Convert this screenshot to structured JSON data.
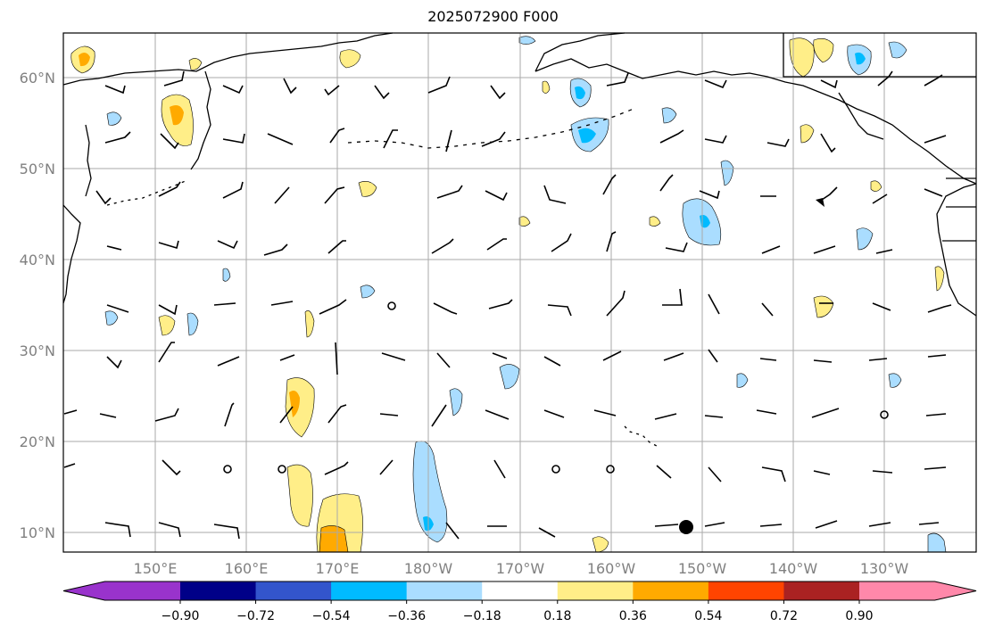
{
  "title": "2025072900 F000",
  "lat_labels": [
    "60°N",
    "50°N",
    "40°N",
    "30°N",
    "20°N",
    "10°N"
  ],
  "lon_labels": [
    "150°E",
    "160°E",
    "170°E",
    "180°W",
    "170°W",
    "160°W",
    "150°W",
    "140°W",
    "130°W"
  ],
  "colorbar": {
    "ticks": [
      "−0.90",
      "−0.72",
      "−0.54",
      "−0.36",
      "−0.18",
      "0.18",
      "0.36",
      "0.54",
      "0.72",
      "0.90"
    ],
    "colors": [
      "#9933cc",
      "#000088",
      "#3355cc",
      "#00bbff",
      "#aaddff",
      "#ffffff",
      "#ffee88",
      "#ffaa00",
      "#ff4400",
      "#aa2222",
      "#ff88aa"
    ]
  },
  "colors": {
    "grid": "#aaaaaa",
    "coast": "#000000",
    "pos_light": "#ffee88",
    "pos_mid": "#ffaa00",
    "neg_light": "#aaddff",
    "neg_mid": "#00bbff"
  }
}
